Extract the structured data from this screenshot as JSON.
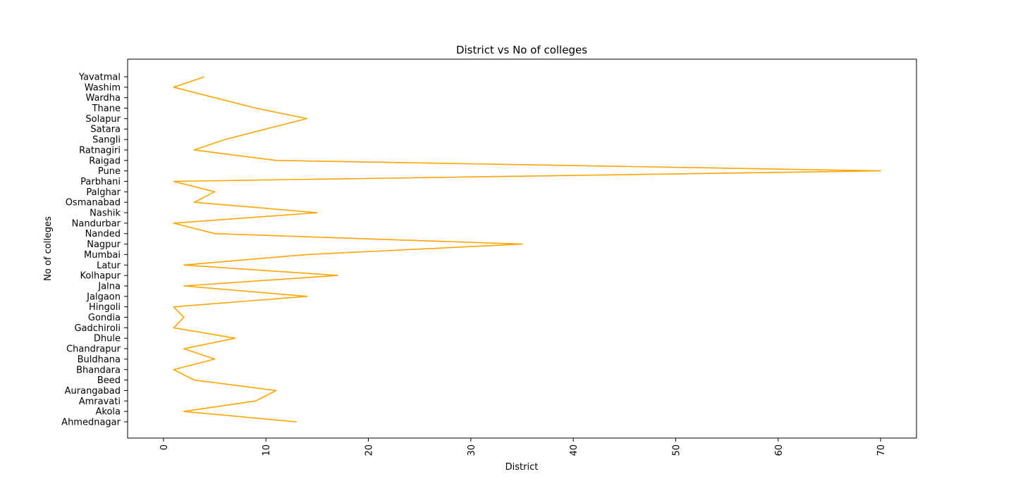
{
  "chart_data": {
    "type": "line",
    "orientation": "horizontal",
    "title": "District vs No of colleges",
    "xlabel": "District",
    "ylabel": "No of colleges",
    "xlim": [
      -3.5,
      73.5
    ],
    "xticks": [
      0,
      10,
      20,
      30,
      40,
      50,
      60,
      70
    ],
    "grid": false,
    "line_color": "#ffa500",
    "categories": [
      "Ahmednagar",
      "Akola",
      "Amravati",
      "Aurangabad",
      "Beed",
      "Bhandara",
      "Buldhana",
      "Chandrapur",
      "Dhule",
      "Gadchiroli",
      "Gondia",
      "Hingoli",
      "Jalgaon",
      "Jalna",
      "Kolhapur",
      "Latur",
      "Mumbai",
      "Nagpur",
      "Nanded",
      "Nandurbar",
      "Nashik",
      "Osmanabad",
      "Palghar",
      "Parbhani",
      "Pune",
      "Raigad",
      "Ratnagiri",
      "Sangli",
      "Satara",
      "Solapur",
      "Thane",
      "Wardha",
      "Washim",
      "Yavatmal"
    ],
    "values": [
      13,
      2,
      9,
      11,
      3,
      1,
      5,
      2,
      7,
      1,
      2,
      1,
      14,
      2,
      17,
      2,
      14,
      35,
      5,
      1,
      15,
      3,
      5,
      1,
      70,
      11,
      3,
      6,
      10,
      14,
      9,
      5,
      1,
      4
    ]
  }
}
